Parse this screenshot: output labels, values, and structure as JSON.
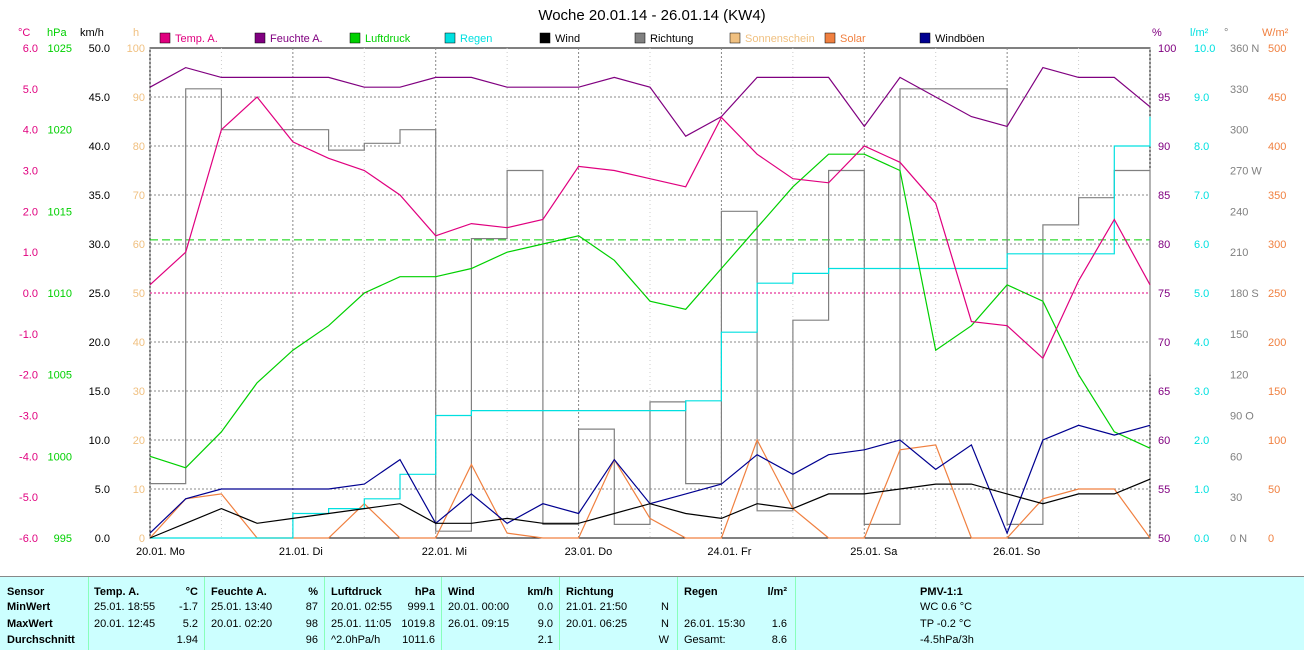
{
  "title": "Woche 20.01.14 - 26.01.14 (KW4)",
  "colors": {
    "temp": "#e0007f",
    "feuchte": "#800080",
    "luftdruck": "#00d000",
    "regen": "#00e0e0",
    "wind": "#000000",
    "richtung": "#808080",
    "sonnenschein": "#f0c080",
    "solar": "#f08040",
    "windboeen": "#000090"
  },
  "legend": [
    {
      "key": "temp",
      "label": "Temp. A."
    },
    {
      "key": "feuchte",
      "label": "Feuchte A."
    },
    {
      "key": "luftdruck",
      "label": "Luftdruck"
    },
    {
      "key": "regen",
      "label": "Regen"
    },
    {
      "key": "wind",
      "label": "Wind"
    },
    {
      "key": "richtung",
      "label": "Richtung"
    },
    {
      "key": "sonnenschein",
      "label": "Sonnenschein"
    },
    {
      "key": "solar",
      "label": "Solar"
    },
    {
      "key": "windboeen",
      "label": "Windböen"
    }
  ],
  "axis_units": {
    "temp": "°C",
    "pressure": "hPa",
    "wind": "km/h",
    "sun": "h",
    "hum": "%",
    "rain": "l/m²",
    "dir": "°",
    "solar": "W/m²"
  },
  "left_axes": {
    "temp": [
      "6.0",
      "5.0",
      "4.0",
      "3.0",
      "2.0",
      "1.0",
      "0.0",
      "-1.0",
      "-2.0",
      "-3.0",
      "-4.0",
      "-5.0",
      "-6.0"
    ],
    "pressure": [
      "1025",
      "",
      "1020",
      "",
      "1015",
      "",
      "1010",
      "",
      "1005",
      "",
      "1000",
      "",
      "995"
    ],
    "wind": [
      "50.0",
      "45.0",
      "40.0",
      "35.0",
      "30.0",
      "25.0",
      "20.0",
      "15.0",
      "10.0",
      "5.0",
      "0.0"
    ],
    "sun": [
      "100",
      "90",
      "80",
      "70",
      "60",
      "50",
      "40",
      "30",
      "20",
      "10",
      "0"
    ]
  },
  "right_axes": {
    "hum": [
      "100",
      "95",
      "90",
      "85",
      "80",
      "75",
      "70",
      "65",
      "60",
      "55",
      "50"
    ],
    "rain": [
      "10.0",
      "9.0",
      "8.0",
      "7.0",
      "6.0",
      "5.0",
      "4.0",
      "3.0",
      "2.0",
      "1.0",
      "0.0"
    ],
    "dir": [
      "360 N",
      "330",
      "300",
      "270 W",
      "240",
      "210",
      "180 S",
      "150",
      "120",
      "90 O",
      "60",
      "30",
      "0 N"
    ],
    "solar": [
      "500",
      "450",
      "400",
      "350",
      "300",
      "250",
      "200",
      "150",
      "100",
      "50",
      "0"
    ]
  },
  "x_labels": [
    "20.01. Mo",
    "21.01. Di",
    "22.01. Mi",
    "23.01. Do",
    "24.01. Fr",
    "25.01. Sa",
    "26.01. So"
  ],
  "chart_data": {
    "type": "line",
    "title": "Woche 20.01.14 - 26.01.14 (KW4)",
    "x_hours": [
      0,
      6,
      12,
      18,
      24,
      30,
      36,
      42,
      48,
      54,
      60,
      66,
      72,
      78,
      84,
      90,
      96,
      102,
      108,
      114,
      120,
      126,
      132,
      138,
      144,
      150,
      156,
      162,
      168
    ],
    "series": [
      {
        "name": "Temp. A.",
        "unit": "°C",
        "values": [
          0.2,
          1.0,
          4.0,
          4.8,
          3.7,
          3.3,
          3.0,
          2.4,
          1.4,
          1.7,
          1.6,
          1.8,
          3.1,
          3.0,
          2.8,
          2.6,
          4.3,
          3.4,
          2.8,
          2.7,
          3.6,
          3.2,
          2.2,
          -0.7,
          -0.8,
          -1.6,
          0.3,
          1.8,
          0.2
        ]
      },
      {
        "name": "Feuchte A.",
        "unit": "%",
        "values": [
          96,
          98,
          97,
          97,
          97,
          97,
          96,
          96,
          97,
          97,
          96,
          96,
          96,
          97,
          96,
          91,
          93,
          97,
          97,
          97,
          92,
          97,
          95,
          93,
          92,
          98,
          97,
          97,
          94
        ]
      },
      {
        "name": "Luftdruck",
        "unit": "hPa",
        "values": [
          1000,
          999.3,
          1001.5,
          1004.5,
          1006.5,
          1008.0,
          1010.0,
          1011.0,
          1011.0,
          1011.5,
          1012.5,
          1013.0,
          1013.5,
          1012.0,
          1009.5,
          1009.0,
          1011.5,
          1014.0,
          1016.5,
          1018.5,
          1018.5,
          1017.5,
          1006.5,
          1008.0,
          1010.5,
          1009.5,
          1005.0,
          1001.5,
          1000.5
        ]
      },
      {
        "name": "Regen",
        "unit": "l/m²",
        "values": [
          0,
          0,
          0,
          0,
          0.5,
          0.6,
          0.8,
          1.3,
          2.5,
          2.6,
          2.6,
          2.6,
          2.6,
          2.6,
          2.6,
          2.8,
          4.2,
          5.2,
          5.4,
          5.5,
          5.5,
          5.5,
          5.5,
          5.5,
          5.8,
          5.8,
          5.8,
          8.0,
          8.6
        ]
      },
      {
        "name": "Wind",
        "unit": "km/h",
        "values": [
          0.0,
          1.5,
          3.0,
          1.5,
          2.0,
          2.5,
          3.0,
          3.5,
          1.5,
          1.5,
          2.0,
          1.5,
          1.5,
          2.5,
          3.5,
          2.5,
          2.0,
          3.5,
          3.0,
          4.5,
          4.5,
          5.0,
          5.5,
          5.5,
          4.5,
          3.5,
          4.5,
          4.5,
          6.0
        ]
      },
      {
        "name": "Windböen",
        "unit": "km/h",
        "values": [
          0.5,
          4.0,
          5.0,
          5.0,
          5.0,
          5.0,
          5.5,
          8.0,
          1.5,
          4.5,
          1.5,
          3.5,
          2.5,
          8.0,
          3.5,
          4.5,
          5.5,
          8.5,
          6.5,
          8.5,
          9.0,
          10.0,
          7.0,
          9.5,
          0.5,
          10.0,
          11.5,
          10.5,
          11.5
        ]
      },
      {
        "name": "Richtung",
        "unit": "°",
        "values": [
          40,
          330,
          300,
          300,
          300,
          285,
          290,
          300,
          5,
          220,
          270,
          10,
          80,
          10,
          100,
          40,
          240,
          20,
          160,
          270,
          10,
          330,
          330,
          330,
          10,
          230,
          250,
          270,
          120
        ]
      },
      {
        "name": "Solar",
        "unit": "W/m²",
        "values": [
          0,
          40,
          45,
          0,
          0,
          0,
          35,
          0,
          0,
          75,
          5,
          0,
          0,
          80,
          20,
          0,
          0,
          100,
          30,
          0,
          0,
          90,
          95,
          0,
          0,
          40,
          50,
          50,
          0
        ]
      }
    ],
    "reference_lines": [
      {
        "series": "Luftdruck",
        "value": 1013.25
      },
      {
        "series": "Temp. A.",
        "value": 0.0
      }
    ],
    "xlabel": "",
    "ylim_temp": [
      -6,
      6
    ],
    "ylim_pressure": [
      995,
      1025
    ],
    "ylim_wind": [
      0,
      50
    ],
    "ylim_hum": [
      50,
      100
    ],
    "ylim_rain": [
      0,
      10
    ],
    "ylim_dir": [
      0,
      360
    ],
    "ylim_solar": [
      0,
      500
    ],
    "grid": true,
    "legend_position": "top"
  },
  "summary": {
    "sensor_col": {
      "header": "Sensor",
      "rows": [
        "MinWert",
        "MaxWert",
        "Durchschnitt"
      ]
    },
    "temp_col": {
      "header": "Temp. A.",
      "unit": "°C",
      "rows": [
        {
          "when": "25.01.  18:55",
          "val": "-1.7"
        },
        {
          "when": "20.01.  12:45",
          "val": "5.2"
        },
        {
          "when": "",
          "val": "1.94"
        }
      ]
    },
    "hum_col": {
      "header": "Feuchte A.",
      "unit": "%",
      "rows": [
        {
          "when": "25.01.  13:40",
          "val": "87"
        },
        {
          "when": "20.01.  02:20",
          "val": "98"
        },
        {
          "when": "",
          "val": "96"
        }
      ]
    },
    "press_col": {
      "header": "Luftdruck",
      "unit": "hPa",
      "rows": [
        {
          "when": "20.01.  02:55",
          "val": "999.1"
        },
        {
          "when": "25.01.  11:05",
          "val": "1019.8"
        },
        {
          "when": "^2.0hPa/h",
          "val": "1011.6"
        }
      ]
    },
    "wind_col": {
      "header": "Wind",
      "unit": "km/h",
      "rows": [
        {
          "when": "20.01.  00:00",
          "val": "0.0"
        },
        {
          "when": "26.01.  09:15",
          "val": "9.0"
        },
        {
          "when": "",
          "val": "2.1"
        }
      ]
    },
    "dir_col": {
      "header": "Richtung",
      "rows": [
        {
          "when": "21.01.  21:50",
          "val": "N"
        },
        {
          "when": "20.01.  06:25",
          "val": "N"
        },
        {
          "when": "",
          "val": "W"
        }
      ]
    },
    "rain_col": {
      "header": "Regen",
      "unit": "l/m²",
      "rows": [
        {
          "when": "",
          "val": ""
        },
        {
          "when": "26.01.  15:30",
          "val": "1.6"
        },
        {
          "when": "Gesamt:",
          "val": "8.6"
        }
      ]
    },
    "pmv_col": {
      "header": "PMV-1:1",
      "rows": [
        "WC 0.6 °C",
        "TP -0.2 °C",
        "-4.5hPa/3h"
      ]
    }
  }
}
